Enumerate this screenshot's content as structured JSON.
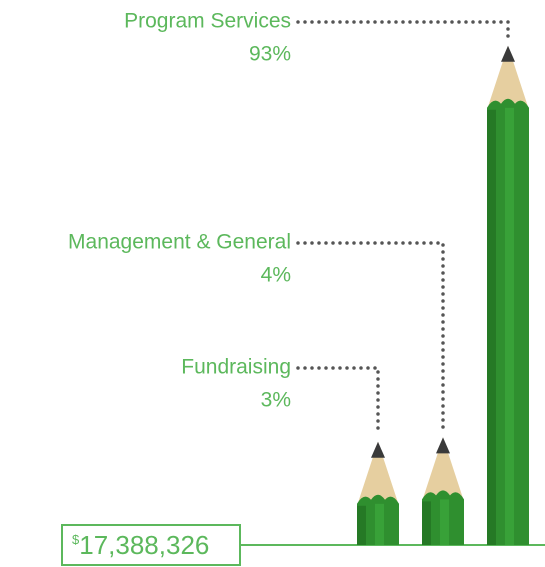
{
  "chart_data": {
    "type": "bar",
    "categories": [
      "Fundraising",
      "Management & General",
      "Program Services"
    ],
    "values": [
      3,
      4,
      93
    ],
    "value_labels": [
      "3%",
      "4%",
      "93%"
    ],
    "color": "#2f8f2f",
    "total_currency": "$",
    "total": "17,388,326"
  }
}
